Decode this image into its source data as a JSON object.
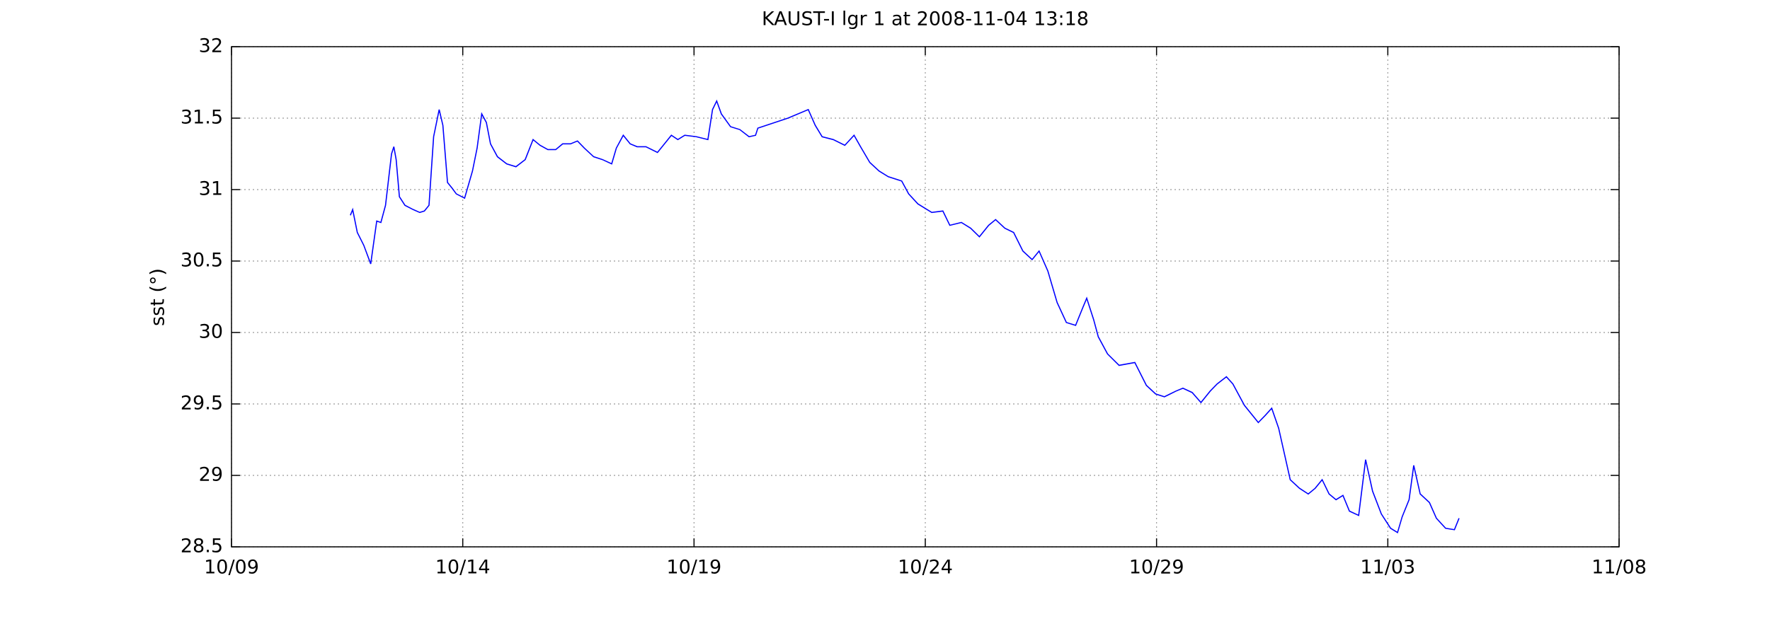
{
  "chart_data": {
    "type": "line",
    "title": "KAUST-I lgr 1 at 2008-11-04 13:18",
    "y_label": "sst (°)",
    "color": "#0000ff",
    "grid": true,
    "xlim": [
      0,
      30
    ],
    "xticks": [
      {
        "value": 0,
        "label": "10/09"
      },
      {
        "value": 5,
        "label": "10/14"
      },
      {
        "value": 10,
        "label": "10/19"
      },
      {
        "value": 15,
        "label": "10/24"
      },
      {
        "value": 20,
        "label": "10/29"
      },
      {
        "value": 25,
        "label": "11/03"
      },
      {
        "value": 30,
        "label": "11/08"
      }
    ],
    "ylim": [
      28.5,
      32
    ],
    "yticks": [
      28.5,
      29,
      29.5,
      30,
      30.5,
      31,
      31.5,
      32
    ],
    "x": [
      2.57,
      2.62,
      2.72,
      2.86,
      3.01,
      3.14,
      3.23,
      3.33,
      3.46,
      3.51,
      3.56,
      3.63,
      3.75,
      3.93,
      4.07,
      4.17,
      4.27,
      4.37,
      4.49,
      4.57,
      4.67,
      4.77,
      4.86,
      5.04,
      5.21,
      5.31,
      5.41,
      5.51,
      5.6,
      5.75,
      5.95,
      6.15,
      6.35,
      6.52,
      6.67,
      6.84,
      7.01,
      7.16,
      7.33,
      7.48,
      7.63,
      7.83,
      8.02,
      8.22,
      8.32,
      8.47,
      8.62,
      8.77,
      8.96,
      9.21,
      9.36,
      9.51,
      9.65,
      9.8,
      10.05,
      10.3,
      10.4,
      10.49,
      10.59,
      10.79,
      10.99,
      11.19,
      11.33,
      11.38,
      12.03,
      12.47,
      12.62,
      12.77,
      13.01,
      13.26,
      13.46,
      13.6,
      13.8,
      14.0,
      14.2,
      14.49,
      14.64,
      14.84,
      15.14,
      15.38,
      15.53,
      15.78,
      15.98,
      16.17,
      16.37,
      16.52,
      16.72,
      16.91,
      17.11,
      17.31,
      17.46,
      17.65,
      17.85,
      18.05,
      18.25,
      18.4,
      18.49,
      18.64,
      18.74,
      18.94,
      19.19,
      19.53,
      19.78,
      19.98,
      20.17,
      20.42,
      20.57,
      20.77,
      20.96,
      21.16,
      21.31,
      21.51,
      21.65,
      21.9,
      22.2,
      22.35,
      22.49,
      22.64,
      22.89,
      23.09,
      23.28,
      23.43,
      23.58,
      23.73,
      23.88,
      24.03,
      24.17,
      24.37,
      24.52,
      24.67,
      24.86,
      25.06,
      25.21,
      25.31,
      25.46,
      25.56,
      25.7,
      25.9,
      26.05,
      26.25,
      26.44,
      26.54
    ],
    "values": [
      30.82,
      30.86,
      30.7,
      30.61,
      30.48,
      30.78,
      30.77,
      30.89,
      31.25,
      31.3,
      31.21,
      30.95,
      30.89,
      30.86,
      30.84,
      30.85,
      30.89,
      31.37,
      31.56,
      31.45,
      31.05,
      31.01,
      30.97,
      30.94,
      31.13,
      31.29,
      31.53,
      31.47,
      31.32,
      31.23,
      31.18,
      31.16,
      31.21,
      31.35,
      31.31,
      31.28,
      31.28,
      31.32,
      31.32,
      31.34,
      31.29,
      31.23,
      31.21,
      31.18,
      31.29,
      31.38,
      31.32,
      31.3,
      31.3,
      31.26,
      31.32,
      31.38,
      31.35,
      31.38,
      31.37,
      31.35,
      31.56,
      31.62,
      31.53,
      31.44,
      31.42,
      31.37,
      31.38,
      31.43,
      31.5,
      31.56,
      31.45,
      31.37,
      31.35,
      31.31,
      31.38,
      31.3,
      31.19,
      31.13,
      31.09,
      31.06,
      30.97,
      30.9,
      30.84,
      30.85,
      30.75,
      30.77,
      30.73,
      30.67,
      30.75,
      30.79,
      30.73,
      30.7,
      30.57,
      30.51,
      30.57,
      30.43,
      30.21,
      30.07,
      30.05,
      30.17,
      30.24,
      30.09,
      29.97,
      29.85,
      29.77,
      29.79,
      29.63,
      29.57,
      29.55,
      29.59,
      29.61,
      29.58,
      29.51,
      29.59,
      29.64,
      29.69,
      29.64,
      29.49,
      29.37,
      29.42,
      29.47,
      29.33,
      28.97,
      28.91,
      28.87,
      28.91,
      28.97,
      28.87,
      28.83,
      28.86,
      28.75,
      28.72,
      29.11,
      28.89,
      28.73,
      28.63,
      28.6,
      28.71,
      28.83,
      29.07,
      28.87,
      28.81,
      28.7,
      28.63,
      28.62,
      28.7
    ]
  }
}
